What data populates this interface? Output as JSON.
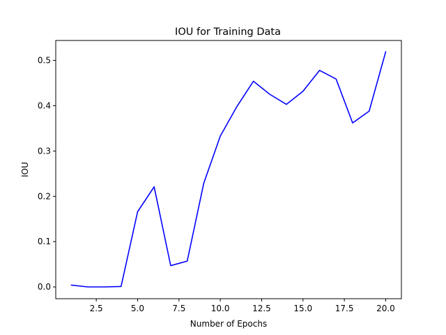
{
  "chart_data": {
    "type": "line",
    "title": "IOU for Training Data",
    "xlabel": "Number of Epochs",
    "ylabel": "IOU",
    "xlim": [
      0.05,
      20.95
    ],
    "ylim": [
      -0.026,
      0.544
    ],
    "xticks": [
      "2.5",
      "5.0",
      "7.5",
      "10.0",
      "12.5",
      "15.0",
      "17.5",
      "20.0"
    ],
    "yticks": [
      "0.0",
      "0.1",
      "0.2",
      "0.3",
      "0.4",
      "0.5"
    ],
    "grid": false,
    "legend": "none",
    "series": [
      {
        "color": "#0000ff",
        "x": [
          1,
          2,
          3,
          4,
          5,
          6,
          7,
          8,
          9,
          10,
          11,
          12,
          13,
          14,
          15,
          16,
          17,
          18,
          19,
          20
        ],
        "y": [
          0.004,
          0.0,
          0.0,
          0.001,
          0.166,
          0.221,
          0.047,
          0.057,
          0.229,
          0.333,
          0.398,
          0.454,
          0.425,
          0.403,
          0.432,
          0.478,
          0.459,
          0.362,
          0.388,
          0.519
        ]
      }
    ]
  }
}
